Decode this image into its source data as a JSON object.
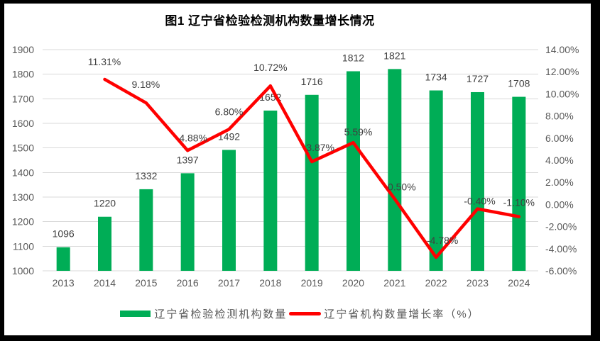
{
  "window": {
    "title": "图1 辽宁省检验检测机构数量增长情况"
  },
  "colors": {
    "bar": "#00AD56",
    "line": "#FF0000",
    "grid": "#D9D9D9",
    "axis_text": "#595959",
    "data_label": "#404040",
    "frame": "#000000",
    "background": "#FFFFFF"
  },
  "legend": {
    "bar_label": "辽宁省检验检测机构数量",
    "line_label": "辽宁省机构数量增长率（%）"
  },
  "chart_data": {
    "type": "combo_bar_line",
    "title": "图1 辽宁省检验检测机构数量增长情况",
    "categories": [
      "2013",
      "2014",
      "2015",
      "2016",
      "2017",
      "2018",
      "2019",
      "2020",
      "2021",
      "2022",
      "2023",
      "2024"
    ],
    "series": [
      {
        "name": "辽宁省检验检测机构数量",
        "type": "bar",
        "axis": "left",
        "color": "#00AD56",
        "values": [
          1096,
          1220,
          1332,
          1397,
          1492,
          1652,
          1716,
          1812,
          1821,
          1734,
          1727,
          1708
        ],
        "labels": [
          "1096",
          "1220",
          "1332",
          "1397",
          "1492",
          "1652",
          "1716",
          "1812",
          "1821",
          "1734",
          "1727",
          "1708"
        ]
      },
      {
        "name": "辽宁省机构数量增长率（%）",
        "type": "line",
        "axis": "right",
        "color": "#FF0000",
        "values": [
          null,
          11.31,
          9.18,
          4.88,
          6.8,
          10.72,
          3.87,
          5.59,
          0.5,
          -4.78,
          -0.4,
          -1.1
        ],
        "labels": [
          null,
          "11.31%",
          "9.18%",
          "4.88%",
          "6.80%",
          "10.72%",
          "3.87%",
          "5.59%",
          "0.50%",
          "-4.78%",
          "-0.40%",
          "-1.10%"
        ]
      }
    ],
    "left_axis": {
      "min": 1000,
      "max": 1900,
      "step": 100,
      "tick_labels": [
        "1900",
        "1800",
        "1700",
        "1600",
        "1500",
        "1400",
        "1300",
        "1200",
        "1100",
        "1000"
      ]
    },
    "right_axis": {
      "min": -6,
      "max": 14,
      "step": 2,
      "tick_labels": [
        "14.00%",
        "12.00%",
        "10.00%",
        "8.00%",
        "6.00%",
        "4.00%",
        "2.00%",
        "0.00%",
        "-2.00%",
        "-4.00%",
        "-6.00%"
      ]
    },
    "grid": "horizontal",
    "legend_position": "bottom"
  }
}
